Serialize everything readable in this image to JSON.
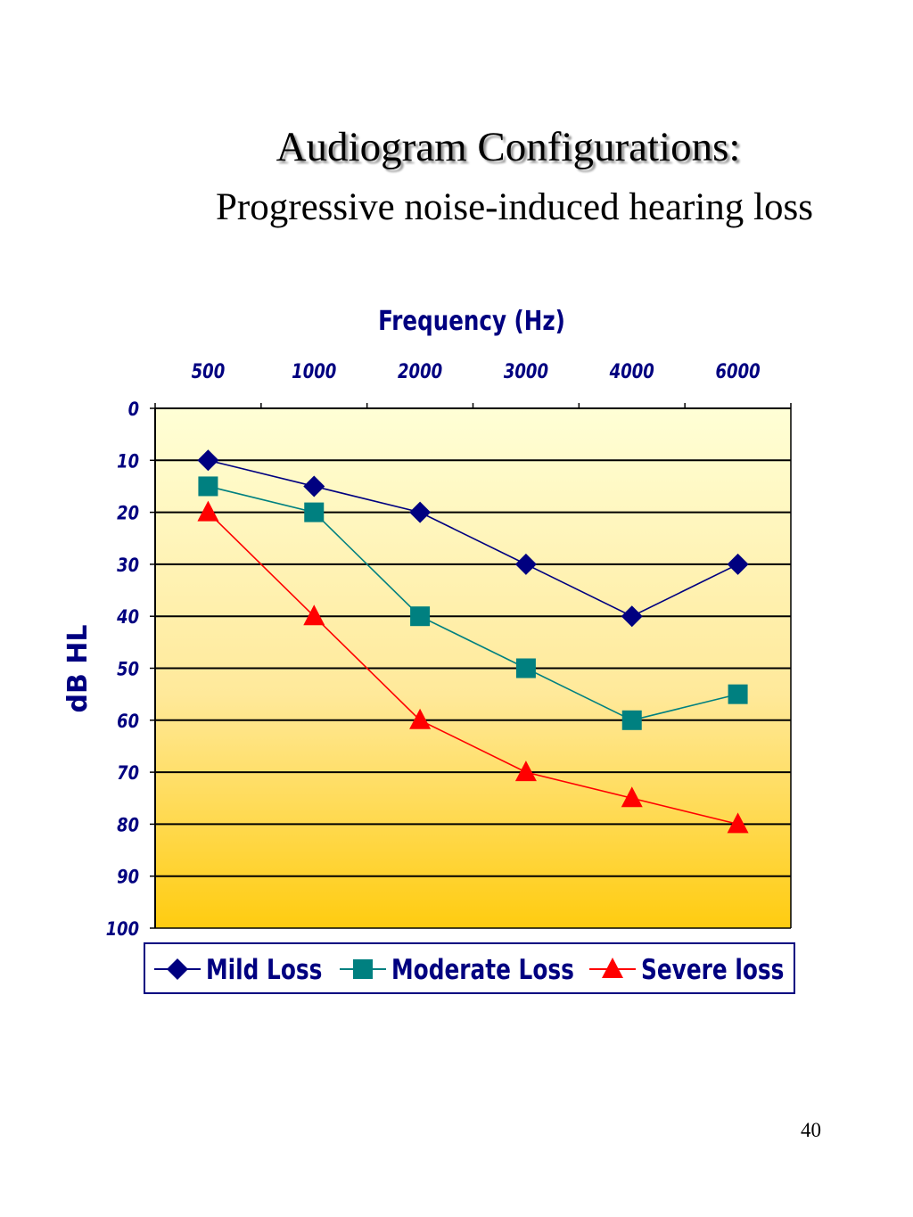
{
  "slide": {
    "title": "Audiogram Configurations:",
    "subtitle": "Progressive noise-induced hearing loss",
    "page_number": "40"
  },
  "chart_data": {
    "type": "line",
    "xlabel": "Frequency (Hz)",
    "ylabel": "dB HL",
    "categories": [
      "500",
      "1000",
      "2000",
      "3000",
      "4000",
      "6000"
    ],
    "ylim": [
      0,
      100
    ],
    "y_inverted": true,
    "y_ticks": [
      0,
      10,
      20,
      30,
      40,
      50,
      60,
      70,
      80,
      90,
      100
    ],
    "grid": true,
    "legend_position": "bottom",
    "series": [
      {
        "name": "Mild Loss",
        "values": [
          10,
          15,
          20,
          30,
          40,
          30
        ],
        "color": "#000080",
        "marker": "diamond"
      },
      {
        "name": "Moderate Loss",
        "values": [
          15,
          20,
          40,
          50,
          60,
          55
        ],
        "color": "#008080",
        "marker": "square"
      },
      {
        "name": "Severe loss",
        "values": [
          20,
          40,
          60,
          70,
          75,
          80
        ],
        "color": "#ff0000",
        "marker": "triangle"
      }
    ]
  }
}
